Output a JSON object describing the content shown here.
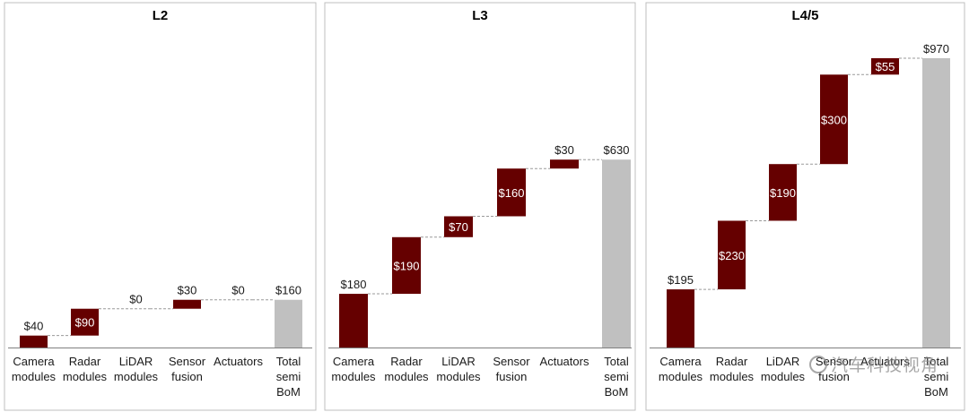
{
  "chart_data": [
    {
      "type": "bar",
      "subtype": "waterfall",
      "title": "L2",
      "categories": [
        "Camera modules",
        "Radar modules",
        "LiDAR modules",
        "Sensor fusion",
        "Actuators",
        "Total semi BoM"
      ],
      "tick_lines": [
        [
          "Camera",
          "modules"
        ],
        [
          "Radar",
          "modules"
        ],
        [
          "LiDAR",
          "modules"
        ],
        [
          "Sensor",
          "fusion"
        ],
        [
          "Actuators"
        ],
        [
          "Total",
          "semi",
          "BoM"
        ]
      ],
      "values": [
        40,
        90,
        0,
        30,
        0,
        160
      ],
      "labels": [
        "$40",
        "$90",
        "$0",
        "$30",
        "$0",
        "$160"
      ],
      "is_total": [
        false,
        false,
        false,
        false,
        false,
        true
      ],
      "ylim": [
        0,
        1000
      ]
    },
    {
      "type": "bar",
      "subtype": "waterfall",
      "title": "L3",
      "categories": [
        "Camera modules",
        "Radar modules",
        "LiDAR modules",
        "Sensor fusion",
        "Actuators",
        "Total semi BoM"
      ],
      "tick_lines": [
        [
          "Camera",
          "modules"
        ],
        [
          "Radar",
          "modules"
        ],
        [
          "LiDAR",
          "modules"
        ],
        [
          "Sensor",
          "fusion"
        ],
        [
          "Actuators"
        ],
        [
          "Total",
          "semi",
          "BoM"
        ]
      ],
      "values": [
        180,
        190,
        70,
        160,
        30,
        630
      ],
      "labels": [
        "$180",
        "$190",
        "$70",
        "$160",
        "$30",
        "$630"
      ],
      "is_total": [
        false,
        false,
        false,
        false,
        false,
        true
      ],
      "ylim": [
        0,
        1000
      ]
    },
    {
      "type": "bar",
      "subtype": "waterfall",
      "title": "L4/5",
      "categories": [
        "Camera modules",
        "Radar modules",
        "LiDAR modules",
        "Sensor fusion",
        "Actuators",
        "Total semi BoM"
      ],
      "tick_lines": [
        [
          "Camera",
          "modules"
        ],
        [
          "Radar",
          "modules"
        ],
        [
          "LiDAR",
          "modules"
        ],
        [
          "Sensor",
          "fusion"
        ],
        [
          "Actuators"
        ],
        [
          "Total",
          "semi",
          "BoM"
        ]
      ],
      "values": [
        195,
        230,
        190,
        300,
        55,
        970
      ],
      "labels": [
        "$195",
        "$230",
        "$190",
        "$300",
        "$55",
        "$970"
      ],
      "is_total": [
        false,
        false,
        false,
        false,
        false,
        true
      ],
      "ylim": [
        0,
        1000
      ]
    }
  ],
  "colors": {
    "increment": "#650000",
    "total": "#c0c0c0"
  },
  "watermark": {
    "text": "汽车科技视角"
  }
}
